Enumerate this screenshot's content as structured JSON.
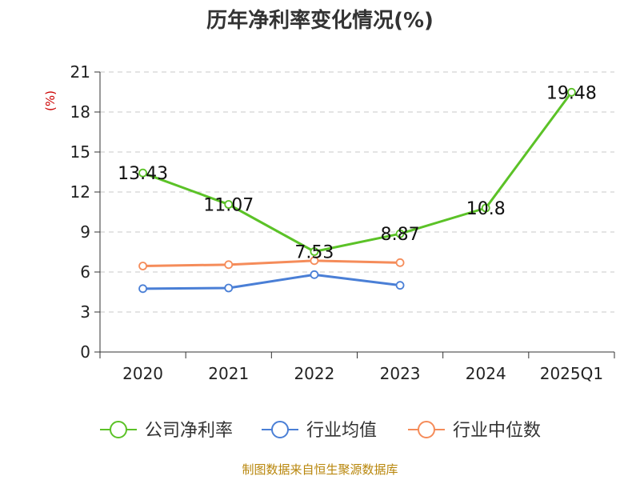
{
  "chart_data": {
    "type": "line",
    "title": "历年净利率变化情况(%)",
    "ylabel": "(%)",
    "categories": [
      "2020",
      "2021",
      "2022",
      "2023",
      "2024",
      "2025Q1"
    ],
    "ylim": [
      0,
      21
    ],
    "yticks": [
      0,
      3,
      6,
      9,
      12,
      15,
      18,
      21
    ],
    "grid": true,
    "legend_position": "bottom",
    "series": [
      {
        "name": "公司净利率",
        "color": "#5bc227",
        "values": [
          13.43,
          11.07,
          7.53,
          8.87,
          10.8,
          19.48
        ],
        "labels": [
          "13.43",
          "11.07",
          "7.53",
          "8.87",
          "10.8",
          "19.48"
        ]
      },
      {
        "name": "行业均值",
        "color": "#4a7fd6",
        "values": [
          4.75,
          4.8,
          5.8,
          5.0,
          null,
          null
        ]
      },
      {
        "name": "行业中位数",
        "color": "#f58c5a",
        "values": [
          6.45,
          6.55,
          6.85,
          6.7,
          null,
          null
        ]
      }
    ]
  },
  "source": "制图数据来自恒生聚源数据库"
}
